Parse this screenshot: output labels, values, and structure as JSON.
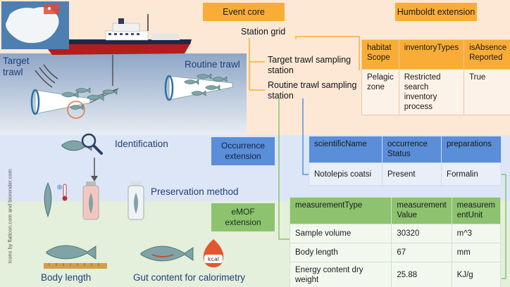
{
  "tags": {
    "event_core": "Event core",
    "humboldt": "Humboldt extension",
    "occurrence": "Occurrence extension",
    "emof": "eMOF extension"
  },
  "event_tree": {
    "root": "Station grid",
    "child1": "Target trawl sampling station",
    "child2": "Routine trawl sampling station"
  },
  "humboldt_table": {
    "headers": [
      "habitat Scope",
      "inventoryTypes",
      "isAbsence Reported"
    ],
    "row": [
      "Pelagic zone",
      "Restricted search inventory process",
      "True"
    ]
  },
  "occurrence_table": {
    "headers": [
      "scientificName",
      "occurrence Status",
      "preparations"
    ],
    "row": [
      "Notolepis coatsi",
      "Present",
      "Formalin"
    ]
  },
  "emof_table": {
    "headers": [
      "measurementType",
      "measurement Value",
      "measurem entUnit"
    ],
    "rows": [
      [
        "Sample volume",
        "30320",
        "m^3"
      ],
      [
        "Body length",
        "67",
        "mm"
      ],
      [
        "Energy content dry weight",
        "25.88",
        "KJ/g"
      ]
    ]
  },
  "scene_labels": {
    "target_trawl": "Target trawl",
    "routine_trawl": "Routine trawl",
    "identification": "Identification",
    "preservation": "Preservation method",
    "body_length": "Body length",
    "gut_content": "Gut content for calorimetry",
    "kcal": "kcal",
    "credit": "Icons by flaticon.com and biorender.com"
  },
  "colors": {
    "orange": "#f9ad36",
    "blue": "#5a8ed8",
    "green": "#8dc26f",
    "label_blue": "#1f3f7a"
  }
}
